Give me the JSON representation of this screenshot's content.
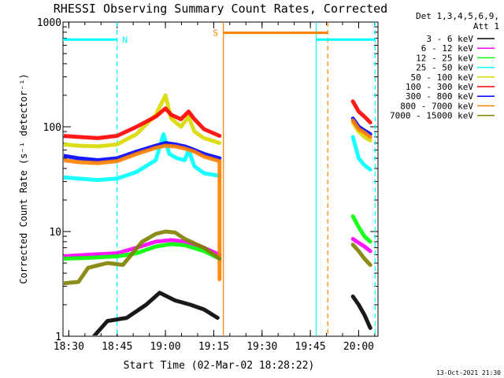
{
  "chart_data": {
    "type": "line",
    "title": "RHESSI Observing Summary Count Rates, Corrected",
    "xlabel": "Start Time (02-Mar-02 18:28:22)",
    "ylabel": "Corrected Count Rate (s⁻¹ detector⁻¹)",
    "yscale": "log",
    "ylim": [
      1,
      1000
    ],
    "xlim_min": [
      18.47,
      20.1
    ],
    "x_ticks": [
      {
        "v": 18.5,
        "label": "18:30"
      },
      {
        "v": 18.75,
        "label": "18:45"
      },
      {
        "v": 19.0,
        "label": "19:00"
      },
      {
        "v": 19.25,
        "label": "19:15"
      },
      {
        "v": 19.5,
        "label": "19:30"
      },
      {
        "v": 19.75,
        "label": "19:45"
      },
      {
        "v": 20.0,
        "label": "20:00"
      }
    ],
    "y_ticks": [
      {
        "v": 1,
        "label": "1"
      },
      {
        "v": 10,
        "label": "10"
      },
      {
        "v": 100,
        "label": "100"
      },
      {
        "v": 1000,
        "label": "1000"
      }
    ],
    "legend_header": [
      "Det 1,3,4,5,6,9,",
      "Att 1"
    ],
    "legend_position": "right",
    "series": [
      {
        "name": "3 - 6 keV",
        "color": "#000000",
        "points": [
          [
            18.63,
            1.0
          ],
          [
            18.7,
            1.4
          ],
          [
            18.8,
            1.5
          ],
          [
            18.9,
            2.0
          ],
          [
            18.97,
            2.6
          ],
          [
            19.05,
            2.2
          ],
          [
            19.13,
            2.0
          ],
          [
            19.2,
            1.8
          ],
          [
            19.27,
            1.5
          ]
        ],
        "points_b": [
          [
            19.97,
            2.4
          ],
          [
            20.0,
            2.0
          ],
          [
            20.03,
            1.6
          ],
          [
            20.06,
            1.2
          ]
        ]
      },
      {
        "name": "6 - 12 keV",
        "color": "#ff00ff",
        "points": [
          [
            18.47,
            5.8
          ],
          [
            18.6,
            6.0
          ],
          [
            18.75,
            6.2
          ],
          [
            18.85,
            7.0
          ],
          [
            18.95,
            8.0
          ],
          [
            19.03,
            8.3
          ],
          [
            19.1,
            8.0
          ],
          [
            19.2,
            7.0
          ],
          [
            19.28,
            6.0
          ]
        ],
        "points_b": [
          [
            19.97,
            8.5
          ],
          [
            20.0,
            7.8
          ],
          [
            20.03,
            7.2
          ],
          [
            20.06,
            6.5
          ]
        ]
      },
      {
        "name": "12 - 25 keV",
        "color": "#00ff00",
        "points": [
          [
            18.47,
            5.5
          ],
          [
            18.6,
            5.6
          ],
          [
            18.75,
            5.8
          ],
          [
            18.85,
            6.2
          ],
          [
            18.95,
            7.2
          ],
          [
            19.03,
            7.6
          ],
          [
            19.1,
            7.4
          ],
          [
            19.2,
            6.5
          ],
          [
            19.28,
            5.5
          ]
        ],
        "points_b": [
          [
            19.97,
            14.0
          ],
          [
            20.0,
            11.0
          ],
          [
            20.03,
            9.0
          ],
          [
            20.06,
            8.0
          ]
        ]
      },
      {
        "name": "25 - 50 keV",
        "color": "#00ffff",
        "points": [
          [
            18.47,
            33
          ],
          [
            18.55,
            32
          ],
          [
            18.65,
            31
          ],
          [
            18.75,
            32
          ],
          [
            18.85,
            37
          ],
          [
            18.95,
            48
          ],
          [
            18.99,
            85
          ],
          [
            19.02,
            55
          ],
          [
            19.06,
            50
          ],
          [
            19.1,
            48
          ],
          [
            19.12,
            60
          ],
          [
            19.15,
            42
          ],
          [
            19.2,
            36
          ],
          [
            19.28,
            34
          ]
        ],
        "points_b": [
          [
            19.97,
            80
          ],
          [
            20.0,
            50
          ],
          [
            20.03,
            43
          ],
          [
            20.06,
            39
          ]
        ]
      },
      {
        "name": "50 - 100 keV",
        "color": "#d8d800",
        "points": [
          [
            18.47,
            68
          ],
          [
            18.55,
            66
          ],
          [
            18.65,
            65
          ],
          [
            18.75,
            68
          ],
          [
            18.85,
            85
          ],
          [
            18.95,
            130
          ],
          [
            19.0,
            200
          ],
          [
            19.03,
            120
          ],
          [
            19.08,
            100
          ],
          [
            19.12,
            125
          ],
          [
            19.15,
            90
          ],
          [
            19.2,
            78
          ],
          [
            19.28,
            70
          ]
        ],
        "points_b": [
          [
            19.97,
            110
          ],
          [
            20.0,
            90
          ],
          [
            20.03,
            80
          ],
          [
            20.06,
            74
          ]
        ]
      },
      {
        "name": "100 - 300 keV",
        "color": "#ff0000",
        "points": [
          [
            18.47,
            82
          ],
          [
            18.55,
            80
          ],
          [
            18.65,
            78
          ],
          [
            18.75,
            82
          ],
          [
            18.85,
            100
          ],
          [
            18.95,
            125
          ],
          [
            19.0,
            150
          ],
          [
            19.03,
            130
          ],
          [
            19.08,
            118
          ],
          [
            19.12,
            140
          ],
          [
            19.15,
            118
          ],
          [
            19.2,
            95
          ],
          [
            19.28,
            82
          ]
        ],
        "points_b": [
          [
            19.97,
            175
          ],
          [
            20.0,
            140
          ],
          [
            20.03,
            125
          ],
          [
            20.06,
            110
          ]
        ]
      },
      {
        "name": "300 - 800 keV",
        "color": "#0000ff",
        "points": [
          [
            18.47,
            53
          ],
          [
            18.55,
            50
          ],
          [
            18.65,
            48
          ],
          [
            18.75,
            50
          ],
          [
            18.85,
            58
          ],
          [
            18.95,
            66
          ],
          [
            19.0,
            70
          ],
          [
            19.05,
            68
          ],
          [
            19.1,
            65
          ],
          [
            19.15,
            60
          ],
          [
            19.2,
            55
          ],
          [
            19.28,
            50
          ]
        ],
        "points_b": [
          [
            19.97,
            120
          ],
          [
            20.0,
            100
          ],
          [
            20.03,
            92
          ],
          [
            20.06,
            85
          ]
        ]
      },
      {
        "name": "800 - 7000 keV",
        "color": "#ff8000",
        "points": [
          [
            18.47,
            48
          ],
          [
            18.55,
            46
          ],
          [
            18.65,
            45
          ],
          [
            18.75,
            47
          ],
          [
            18.85,
            55
          ],
          [
            18.95,
            63
          ],
          [
            19.0,
            66
          ],
          [
            19.05,
            65
          ],
          [
            19.1,
            62
          ],
          [
            19.15,
            58
          ],
          [
            19.2,
            52
          ],
          [
            19.28,
            47
          ],
          [
            19.28,
            3.5
          ]
        ],
        "points_b": [
          [
            19.97,
            115
          ],
          [
            20.0,
            95
          ],
          [
            20.03,
            88
          ],
          [
            20.06,
            80
          ]
        ]
      },
      {
        "name": "7000 - 15000 keV",
        "color": "#808000",
        "points": [
          [
            18.47,
            3.2
          ],
          [
            18.55,
            3.3
          ],
          [
            18.6,
            4.5
          ],
          [
            18.7,
            5.0
          ],
          [
            18.78,
            4.8
          ],
          [
            18.88,
            8.0
          ],
          [
            18.95,
            9.5
          ],
          [
            19.0,
            10.0
          ],
          [
            19.05,
            9.8
          ],
          [
            19.1,
            8.5
          ],
          [
            19.2,
            7.0
          ],
          [
            19.28,
            5.5
          ]
        ],
        "points_b": [
          [
            19.97,
            7.5
          ],
          [
            20.0,
            6.5
          ],
          [
            20.03,
            5.5
          ],
          [
            20.06,
            4.8
          ]
        ]
      }
    ],
    "annotations": [
      {
        "label": "N",
        "color": "#00ffff",
        "kind": "period",
        "x_start": 18.47,
        "x_end": 18.75,
        "level": 680
      },
      {
        "label": "S",
        "color": "#ff8000",
        "kind": "period",
        "x_start": 19.3,
        "x_end": 19.84,
        "level": 790
      },
      {
        "label": "",
        "color": "#00ffff",
        "kind": "period",
        "x_start": 19.78,
        "x_end": 20.085,
        "level": 680
      }
    ],
    "vlines": [
      {
        "x": 18.75,
        "color": "#00ffff",
        "style": "dashed"
      },
      {
        "x": 19.3,
        "color": "#ff8000",
        "style": "solid"
      },
      {
        "x": 19.78,
        "color": "#00ffff",
        "style": "solid"
      },
      {
        "x": 19.84,
        "color": "#ff8000",
        "style": "dashed"
      },
      {
        "x": 20.085,
        "color": "#00ffff",
        "style": "dashed"
      }
    ],
    "footer": "13-Oct-2021 21:30"
  }
}
